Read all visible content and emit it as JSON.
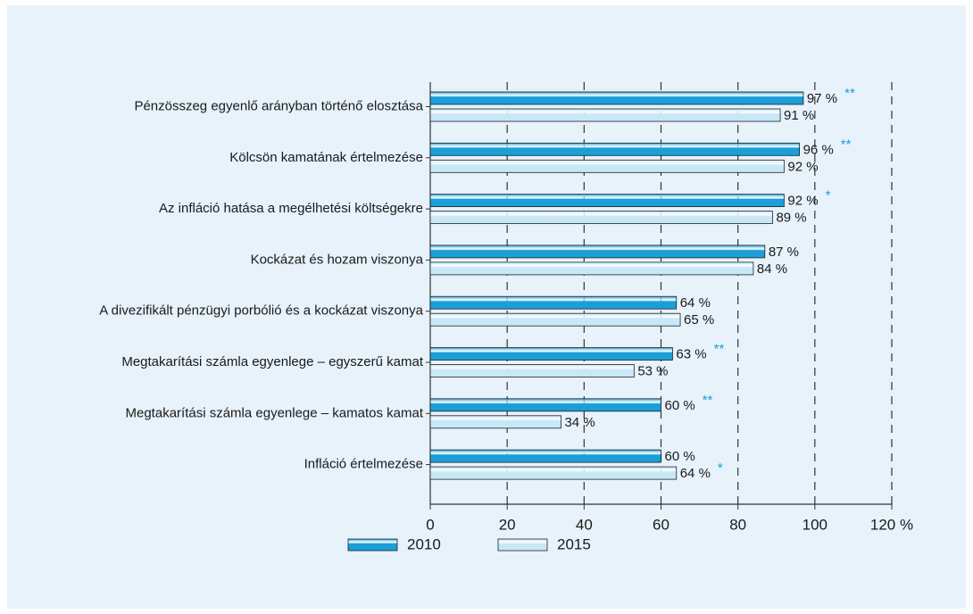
{
  "chart_data": {
    "type": "bar",
    "orientation": "horizontal",
    "categories": [
      "Pénzösszeg egyenlő arányban történő elosztása",
      "Kölcsön kamatának értelmezése",
      "Az infláció hatása a megélhetési költségekre",
      "Kockázat és hozam viszonya",
      "A divezifikált pénzügyi porbólió és a kockázat viszonya",
      "Megtakarítási számla egyenlege – egyszerű kamat",
      "Megtakarítási számla egyenlege – kamatos kamat",
      "Infláció értelmezése"
    ],
    "series": [
      {
        "name": "2010",
        "color": "#1a9fd8",
        "values": [
          97,
          96,
          92,
          87,
          64,
          63,
          60,
          60
        ],
        "value_labels": [
          "97 %",
          "96 %",
          "92 %",
          "87 %",
          "64 %",
          "63 %",
          "60 %",
          "60 %"
        ],
        "significance": [
          "**",
          "**",
          "*",
          null,
          null,
          "**",
          "**",
          null
        ]
      },
      {
        "name": "2015",
        "color": "#c8e8f8",
        "values": [
          91,
          92,
          89,
          84,
          65,
          53,
          34,
          64
        ],
        "value_labels": [
          "91 %",
          "92 %",
          "89 %",
          "84 %",
          "65 %",
          "53 %",
          "34 %",
          "64 %"
        ],
        "significance": [
          null,
          null,
          null,
          null,
          null,
          null,
          null,
          "*"
        ]
      }
    ],
    "xlim": [
      0,
      120
    ],
    "xticks": [
      0,
      20,
      40,
      60,
      80,
      100,
      {
        "value": 120,
        "label": "120 %"
      }
    ],
    "grid": true,
    "legend": "bottom"
  }
}
